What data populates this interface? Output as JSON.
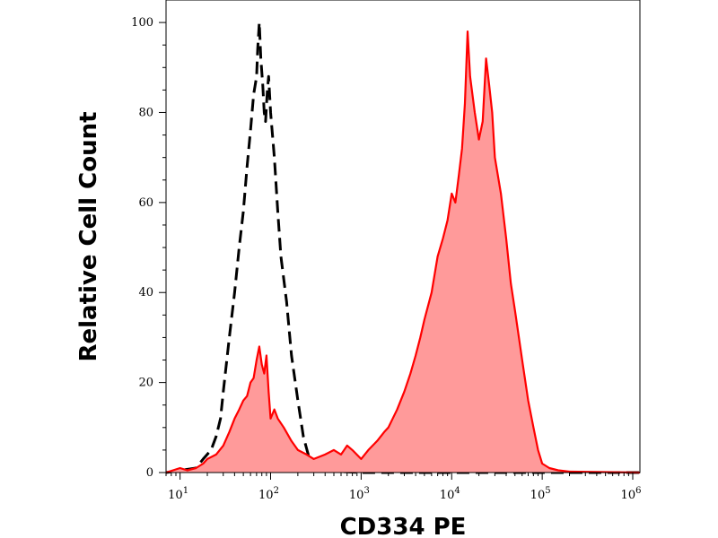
{
  "chart_data": {
    "type": "area",
    "title": "",
    "xlabel": "CD334 PE",
    "ylabel": "Relative Cell Count",
    "x_scale": "log",
    "xlim": [
      7,
      1200000
    ],
    "ylim": [
      0,
      105
    ],
    "x_ticks": [
      {
        "value": 10,
        "base": "10",
        "exp": "1"
      },
      {
        "value": 100,
        "base": "10",
        "exp": "2"
      },
      {
        "value": 1000,
        "base": "10",
        "exp": "3"
      },
      {
        "value": 10000,
        "base": "10",
        "exp": "4"
      },
      {
        "value": 100000,
        "base": "10",
        "exp": "5"
      },
      {
        "value": 1000000,
        "base": "10",
        "exp": "6"
      }
    ],
    "y_ticks": [
      {
        "value": 0,
        "label": "0"
      },
      {
        "value": 20,
        "label": "20"
      },
      {
        "value": 40,
        "label": "40"
      },
      {
        "value": 60,
        "label": "60"
      },
      {
        "value": 80,
        "label": "80"
      },
      {
        "value": 100,
        "label": "100"
      }
    ],
    "grid": false,
    "legend": "none",
    "series": [
      {
        "style": "dashed-line",
        "color": "#000000",
        "x": [
          7,
          15,
          18,
          22,
          25,
          28,
          30,
          35,
          40,
          45,
          50,
          55,
          60,
          65,
          70,
          72,
          75,
          78,
          82,
          85,
          88,
          92,
          95,
          100,
          110,
          120,
          130,
          150,
          170,
          200,
          230,
          260,
          300,
          400,
          600,
          1000,
          100000,
          1200000
        ],
        "y": [
          0,
          1,
          3,
          5,
          8,
          12,
          18,
          30,
          40,
          50,
          58,
          68,
          76,
          84,
          88,
          94,
          100,
          92,
          86,
          80,
          78,
          85,
          88,
          80,
          70,
          58,
          48,
          38,
          26,
          16,
          8,
          4,
          1,
          0.5,
          0.2,
          0,
          0,
          0
        ]
      },
      {
        "style": "filled-area",
        "color": "#ff0000",
        "fill": "#ff9a9a",
        "x": [
          7,
          10,
          12,
          15,
          18,
          20,
          25,
          30,
          35,
          40,
          45,
          50,
          55,
          60,
          65,
          70,
          75,
          80,
          85,
          90,
          95,
          100,
          110,
          120,
          140,
          170,
          200,
          250,
          300,
          400,
          500,
          600,
          700,
          800,
          1000,
          1200,
          1500,
          1800,
          2000,
          2500,
          3000,
          3500,
          4000,
          4500,
          5000,
          6000,
          7000,
          8000,
          9000,
          10000,
          11000,
          12000,
          13000,
          14000,
          15000,
          16000,
          18000,
          20000,
          22000,
          24000,
          26000,
          28000,
          30000,
          35000,
          40000,
          45000,
          50000,
          60000,
          70000,
          80000,
          90000,
          100000,
          120000,
          150000,
          200000,
          1200000
        ],
        "y": [
          0,
          1,
          0.5,
          1,
          2,
          3,
          4,
          6,
          9,
          12,
          14,
          16,
          17,
          20,
          21,
          25,
          28,
          24,
          22,
          26,
          18,
          12,
          14,
          12,
          10,
          7,
          5,
          4,
          3,
          4,
          5,
          4,
          6,
          5,
          3,
          5,
          7,
          9,
          10,
          14,
          18,
          22,
          26,
          30,
          34,
          40,
          48,
          52,
          56,
          62,
          60,
          66,
          72,
          82,
          98,
          88,
          80,
          74,
          78,
          92,
          86,
          80,
          70,
          62,
          52,
          42,
          36,
          25,
          16,
          10,
          5,
          2,
          1,
          0.5,
          0.2,
          0
        ]
      }
    ]
  }
}
